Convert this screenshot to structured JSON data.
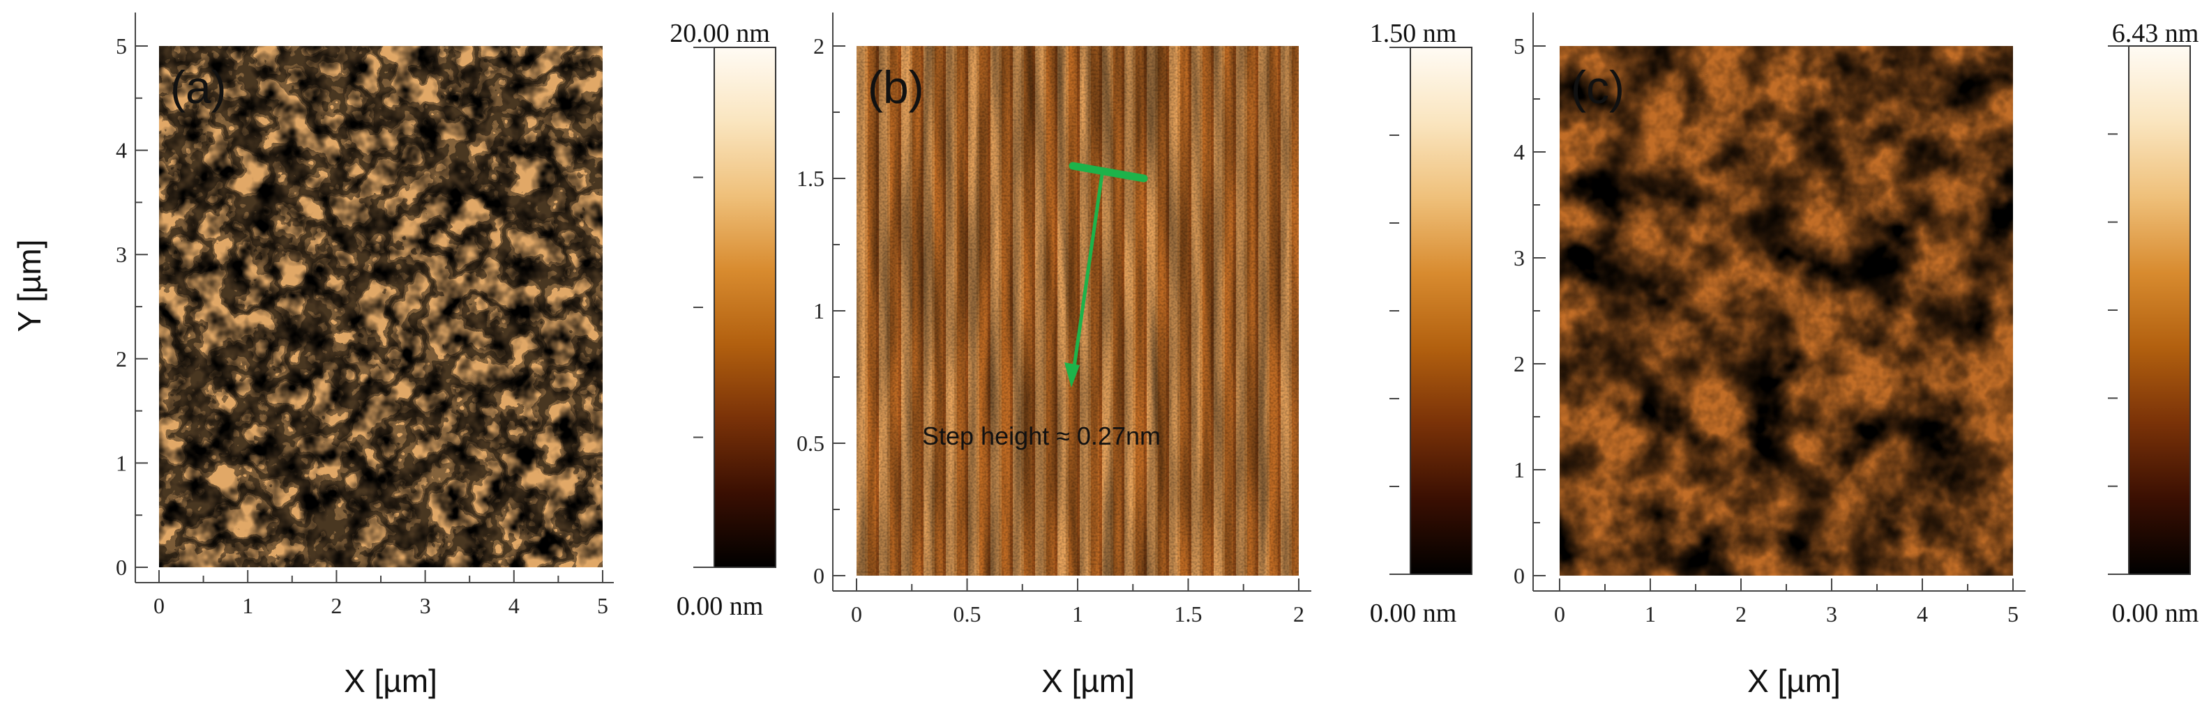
{
  "figure": {
    "ylabel": "Y [µm]",
    "annotation": "Step height ≈ 0.27nm",
    "colormap": [
      "#000000",
      "#3a0f02",
      "#7a3208",
      "#b2600f",
      "#d88b2f",
      "#efc07a",
      "#fae5bf",
      "#fffbf4"
    ]
  },
  "chart_data": [
    {
      "type": "heatmap",
      "panel_label": "(a)",
      "xlabel": "X [µm]",
      "ylabel": "Y [µm]",
      "xlim": [
        0,
        5
      ],
      "ylim": [
        0,
        5
      ],
      "x_ticks": [
        0,
        1,
        2,
        3,
        4,
        5
      ],
      "y_ticks": [
        0,
        1,
        2,
        3,
        4,
        5
      ],
      "x_tick_labels": [
        "0",
        "1",
        "2",
        "3",
        "4",
        "5"
      ],
      "y_tick_labels": [
        "0",
        "1",
        "2",
        "3",
        "4",
        "5"
      ],
      "colorbar": {
        "max_label": "20.00 nm",
        "min_label": "0.00 nm",
        "range": [
          0,
          20
        ]
      },
      "texture": "islands"
    },
    {
      "type": "heatmap",
      "panel_label": "(b)",
      "xlabel": "X [µm]",
      "ylabel": "",
      "xlim": [
        0,
        2
      ],
      "ylim": [
        0,
        2
      ],
      "x_ticks": [
        0,
        0.5,
        1,
        1.5,
        2
      ],
      "y_ticks": [
        0,
        0.5,
        1,
        1.5,
        2
      ],
      "x_tick_labels": [
        "0",
        "0.5",
        "1",
        "1.5",
        "2"
      ],
      "y_tick_labels": [
        "0",
        "0.5",
        "1",
        "1.5",
        "2"
      ],
      "colorbar": {
        "max_label": "1.50 nm",
        "min_label": "0.00 nm",
        "range": [
          0,
          1.5
        ]
      },
      "texture": "steps",
      "annotation": "Step height ≈ 0.27nm"
    },
    {
      "type": "heatmap",
      "panel_label": "(c)",
      "xlabel": "X [µm]",
      "ylabel": "",
      "xlim": [
        0,
        5
      ],
      "ylim": [
        0,
        5
      ],
      "x_ticks": [
        0,
        1,
        2,
        3,
        4,
        5
      ],
      "y_ticks": [
        0,
        1,
        2,
        3,
        4,
        5
      ],
      "x_tick_labels": [
        "0",
        "1",
        "2",
        "3",
        "4",
        "5"
      ],
      "y_tick_labels": [
        "0",
        "1",
        "2",
        "3",
        "4",
        "5"
      ],
      "colorbar": {
        "max_label": "6.43 nm",
        "min_label": "0.00 nm",
        "range": [
          0,
          6.43
        ]
      },
      "texture": "grains"
    }
  ]
}
